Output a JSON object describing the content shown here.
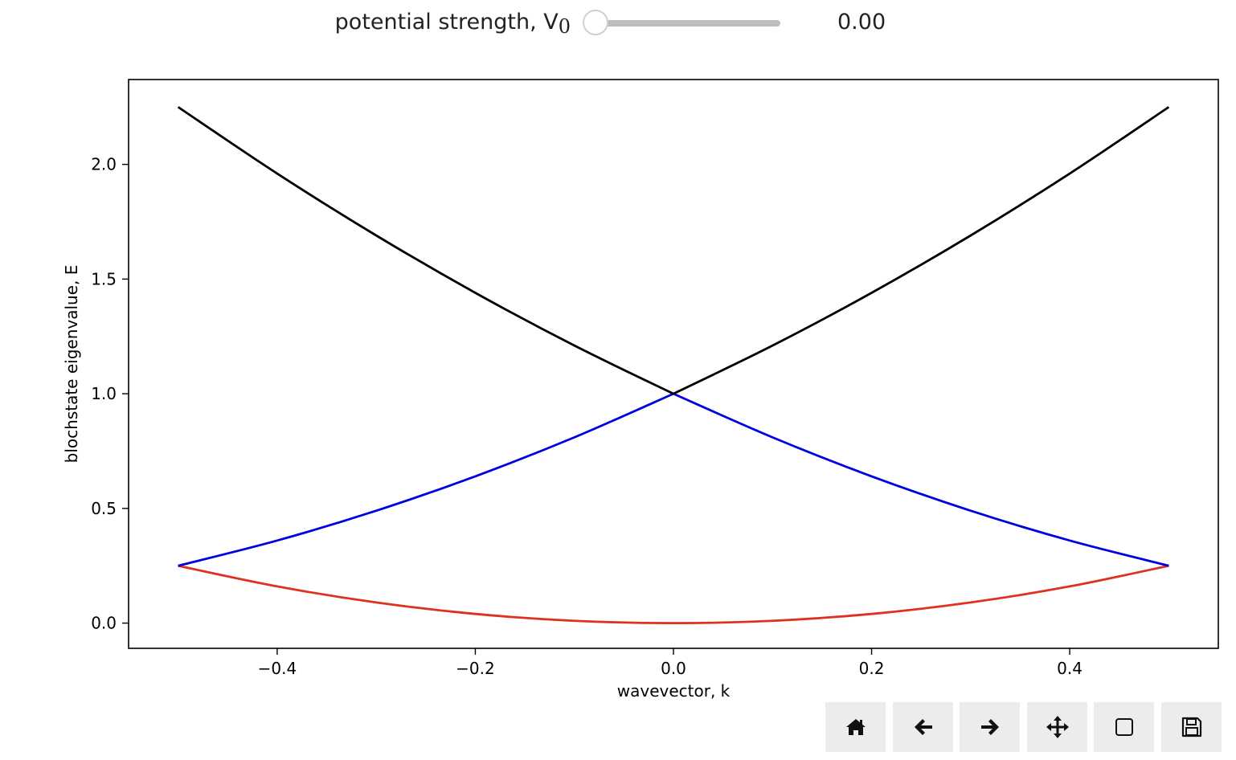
{
  "slider": {
    "label": "potential strength, V",
    "label_subscript": "0",
    "value_text": "0.00",
    "value": 0.0,
    "min": 0.0,
    "max": 1.0
  },
  "toolbar": {
    "buttons": [
      {
        "name": "home-button",
        "icon": "home-icon"
      },
      {
        "name": "back-button",
        "icon": "arrow-left-icon"
      },
      {
        "name": "forward-button",
        "icon": "arrow-right-icon"
      },
      {
        "name": "pan-button",
        "icon": "move-icon"
      },
      {
        "name": "zoom-button",
        "icon": "zoom-rect-icon"
      },
      {
        "name": "save-button",
        "icon": "save-icon"
      }
    ]
  },
  "chart_data": {
    "type": "line",
    "xlabel": "wavevector, k",
    "ylabel": "blochstate eigenvalue, E",
    "xlim": [
      -0.55,
      0.55
    ],
    "ylim": [
      -0.11,
      2.37
    ],
    "xticks": [
      -0.4,
      -0.2,
      0.0,
      0.2,
      0.4
    ],
    "xtick_labels": [
      "−0.4",
      "−0.2",
      "0.0",
      "0.2",
      "0.4"
    ],
    "yticks": [
      0.0,
      0.5,
      1.0,
      1.5,
      2.0
    ],
    "ytick_labels": [
      "0.0",
      "0.5",
      "1.0",
      "1.5",
      "2.0"
    ],
    "grid": false,
    "series": [
      {
        "color": "#e0301e",
        "x": [
          -0.5,
          -0.4,
          -0.3,
          -0.2,
          -0.1,
          0.0,
          0.1,
          0.2,
          0.3,
          0.4,
          0.5
        ],
        "y": [
          0.25,
          0.16,
          0.09,
          0.04,
          0.01,
          0.0,
          0.01,
          0.04,
          0.09,
          0.16,
          0.25
        ]
      },
      {
        "color": "#0000e0",
        "x": [
          -0.5,
          -0.4,
          -0.3,
          -0.2,
          -0.1,
          0.0
        ],
        "y": [
          0.25,
          0.36,
          0.49,
          0.64,
          0.81,
          1.0
        ]
      },
      {
        "color": "#0000e0",
        "x": [
          0.0,
          0.1,
          0.2,
          0.3,
          0.4,
          0.5
        ],
        "y": [
          1.0,
          0.81,
          0.64,
          0.49,
          0.36,
          0.25
        ]
      },
      {
        "color": "#000000",
        "x": [
          -0.5,
          -0.4,
          -0.3,
          -0.2,
          -0.1,
          0.0
        ],
        "y": [
          2.25,
          1.96,
          1.69,
          1.44,
          1.21,
          1.0
        ]
      },
      {
        "color": "#000000",
        "x": [
          0.0,
          0.1,
          0.2,
          0.3,
          0.4,
          0.5
        ],
        "y": [
          1.0,
          1.21,
          1.44,
          1.69,
          1.96,
          2.25
        ]
      }
    ]
  }
}
